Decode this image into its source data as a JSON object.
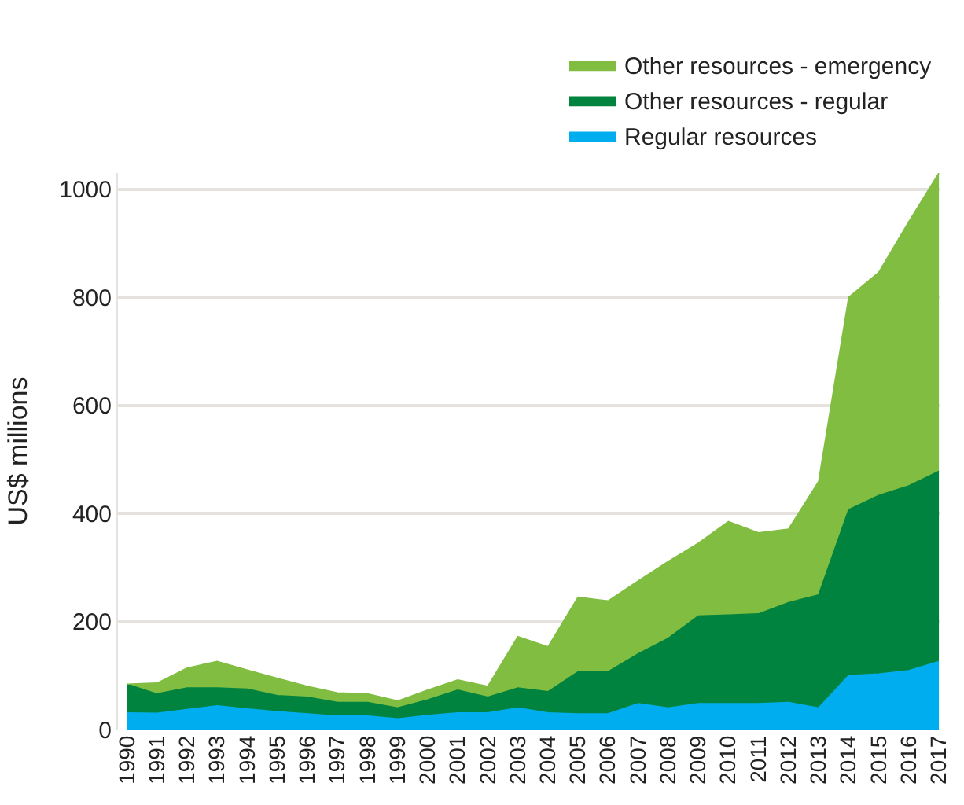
{
  "chart_data": {
    "type": "area",
    "stacked": true,
    "ylabel": "US$ millions",
    "categories": [
      "1990",
      "1991",
      "1992",
      "1993",
      "1994",
      "1995",
      "1996",
      "1997",
      "1998",
      "1999",
      "2000",
      "2001",
      "2002",
      "2003",
      "2004",
      "2005",
      "2006",
      "2007",
      "2008",
      "2009",
      "2010",
      "2011",
      "2012",
      "2013",
      "2014",
      "2015",
      "2016",
      "2017"
    ],
    "series": [
      {
        "name": "Regular resources",
        "color": "#00aeef",
        "values": [
          31,
          30,
          37,
          44,
          38,
          33,
          29,
          25,
          25,
          20,
          26,
          31,
          31,
          40,
          31,
          29,
          29,
          48,
          40,
          48,
          48,
          48,
          50,
          40,
          100,
          103,
          109,
          126
        ]
      },
      {
        "name": "Other resources - regular",
        "color": "#00833e",
        "values": [
          53,
          36,
          40,
          33,
          37,
          30,
          31,
          25,
          25,
          20,
          29,
          42,
          29,
          37,
          39,
          78,
          78,
          92,
          129,
          162,
          164,
          166,
          185,
          209,
          307,
          330,
          342,
          352
        ]
      },
      {
        "name": "Other resources - emergency",
        "color": "#80bd41",
        "values": [
          0,
          20,
          37,
          49,
          35,
          32,
          20,
          18,
          16,
          13,
          18,
          19,
          20,
          95,
          83,
          138,
          131,
          135,
          142,
          135,
          173,
          150,
          136,
          210,
          393,
          413,
          489,
          552
        ]
      }
    ],
    "ylim": [
      0,
      1030
    ],
    "yticks": [
      0,
      200,
      400,
      600,
      800,
      1000
    ],
    "grid": "y",
    "legend": "top right"
  }
}
